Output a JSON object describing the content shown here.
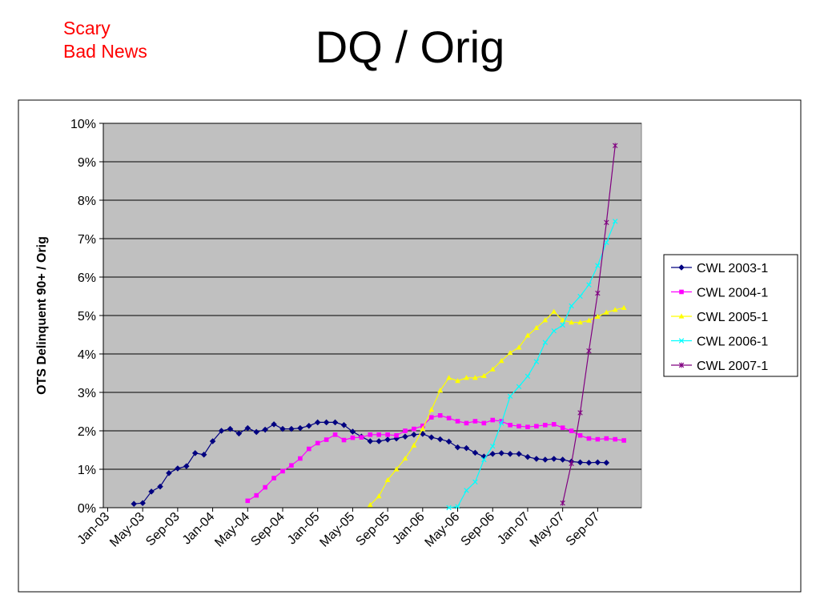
{
  "slide": {
    "title": "DQ / Orig",
    "note_line1": "Scary",
    "note_line2": "Bad News"
  },
  "chart_data": {
    "type": "line",
    "title": "",
    "xlabel": "",
    "ylabel": "OTS Delinquent 90+ / Orig",
    "ylim": [
      0,
      10
    ],
    "y_unit": "%",
    "y_ticks": [
      "0%",
      "1%",
      "2%",
      "3%",
      "4%",
      "5%",
      "6%",
      "7%",
      "8%",
      "9%",
      "10%"
    ],
    "x_ticks": [
      "Jan-03",
      "May-03",
      "Sep-03",
      "Jan-04",
      "May-04",
      "Sep-04",
      "Jan-05",
      "May-05",
      "Sep-05",
      "Jan-06",
      "May-06",
      "Sep-06",
      "Jan-07",
      "May-07",
      "Sep-07"
    ],
    "x_start": "2003-01",
    "grid": true,
    "plot_background": "#c0c0c0",
    "legend_position": "right",
    "series": [
      {
        "name": "CWL 2003-1",
        "color": "#000080",
        "marker": "diamond",
        "start": "2003-04",
        "values": [
          0.1,
          0.12,
          0.42,
          0.55,
          0.9,
          1.02,
          1.08,
          1.42,
          1.38,
          1.73,
          2.0,
          2.05,
          1.93,
          2.07,
          1.97,
          2.03,
          2.17,
          2.05,
          2.05,
          2.07,
          2.13,
          2.22,
          2.22,
          2.22,
          2.15,
          1.98,
          1.85,
          1.73,
          1.73,
          1.77,
          1.8,
          1.85,
          1.9,
          1.92,
          1.83,
          1.78,
          1.72,
          1.57,
          1.55,
          1.43,
          1.33,
          1.4,
          1.42,
          1.4,
          1.4,
          1.32,
          1.27,
          1.25,
          1.27,
          1.25,
          1.2,
          1.18,
          1.17,
          1.18,
          1.17
        ]
      },
      {
        "name": "CWL 2004-1",
        "color": "#ff00ff",
        "marker": "square",
        "start": "2004-05",
        "values": [
          0.18,
          0.32,
          0.53,
          0.77,
          0.95,
          1.1,
          1.28,
          1.53,
          1.68,
          1.77,
          1.9,
          1.76,
          1.82,
          1.83,
          1.9,
          1.9,
          1.9,
          1.88,
          2.0,
          2.05,
          2.13,
          2.35,
          2.4,
          2.33,
          2.25,
          2.2,
          2.25,
          2.2,
          2.28,
          2.25,
          2.15,
          2.12,
          2.1,
          2.12,
          2.15,
          2.17,
          2.08,
          2.0,
          1.88,
          1.8,
          1.78,
          1.8,
          1.78,
          1.75
        ]
      },
      {
        "name": "CWL 2005-1",
        "color": "#ffff00",
        "marker": "triangle",
        "start": "2005-07",
        "values": [
          0.07,
          0.3,
          0.72,
          1.0,
          1.28,
          1.62,
          2.05,
          2.55,
          3.05,
          3.38,
          3.3,
          3.38,
          3.38,
          3.43,
          3.6,
          3.82,
          4.03,
          4.17,
          4.48,
          4.68,
          4.88,
          5.1,
          4.88,
          4.82,
          4.82,
          4.87,
          4.97,
          5.08,
          5.15,
          5.2
        ]
      },
      {
        "name": "CWL 2006-1",
        "color": "#00ffff",
        "marker": "x",
        "start": "2006-04",
        "values": [
          0.0,
          0.03,
          0.45,
          0.67,
          1.25,
          1.6,
          2.2,
          2.9,
          3.15,
          3.42,
          3.8,
          4.3,
          4.6,
          4.75,
          5.25,
          5.5,
          5.8,
          6.3,
          6.9,
          7.45
        ]
      },
      {
        "name": "CWL 2007-1",
        "color": "#800080",
        "marker": "star",
        "start": "2007-05",
        "values": [
          0.12,
          1.15,
          2.47,
          4.08,
          5.58,
          7.42,
          9.42
        ]
      }
    ]
  }
}
